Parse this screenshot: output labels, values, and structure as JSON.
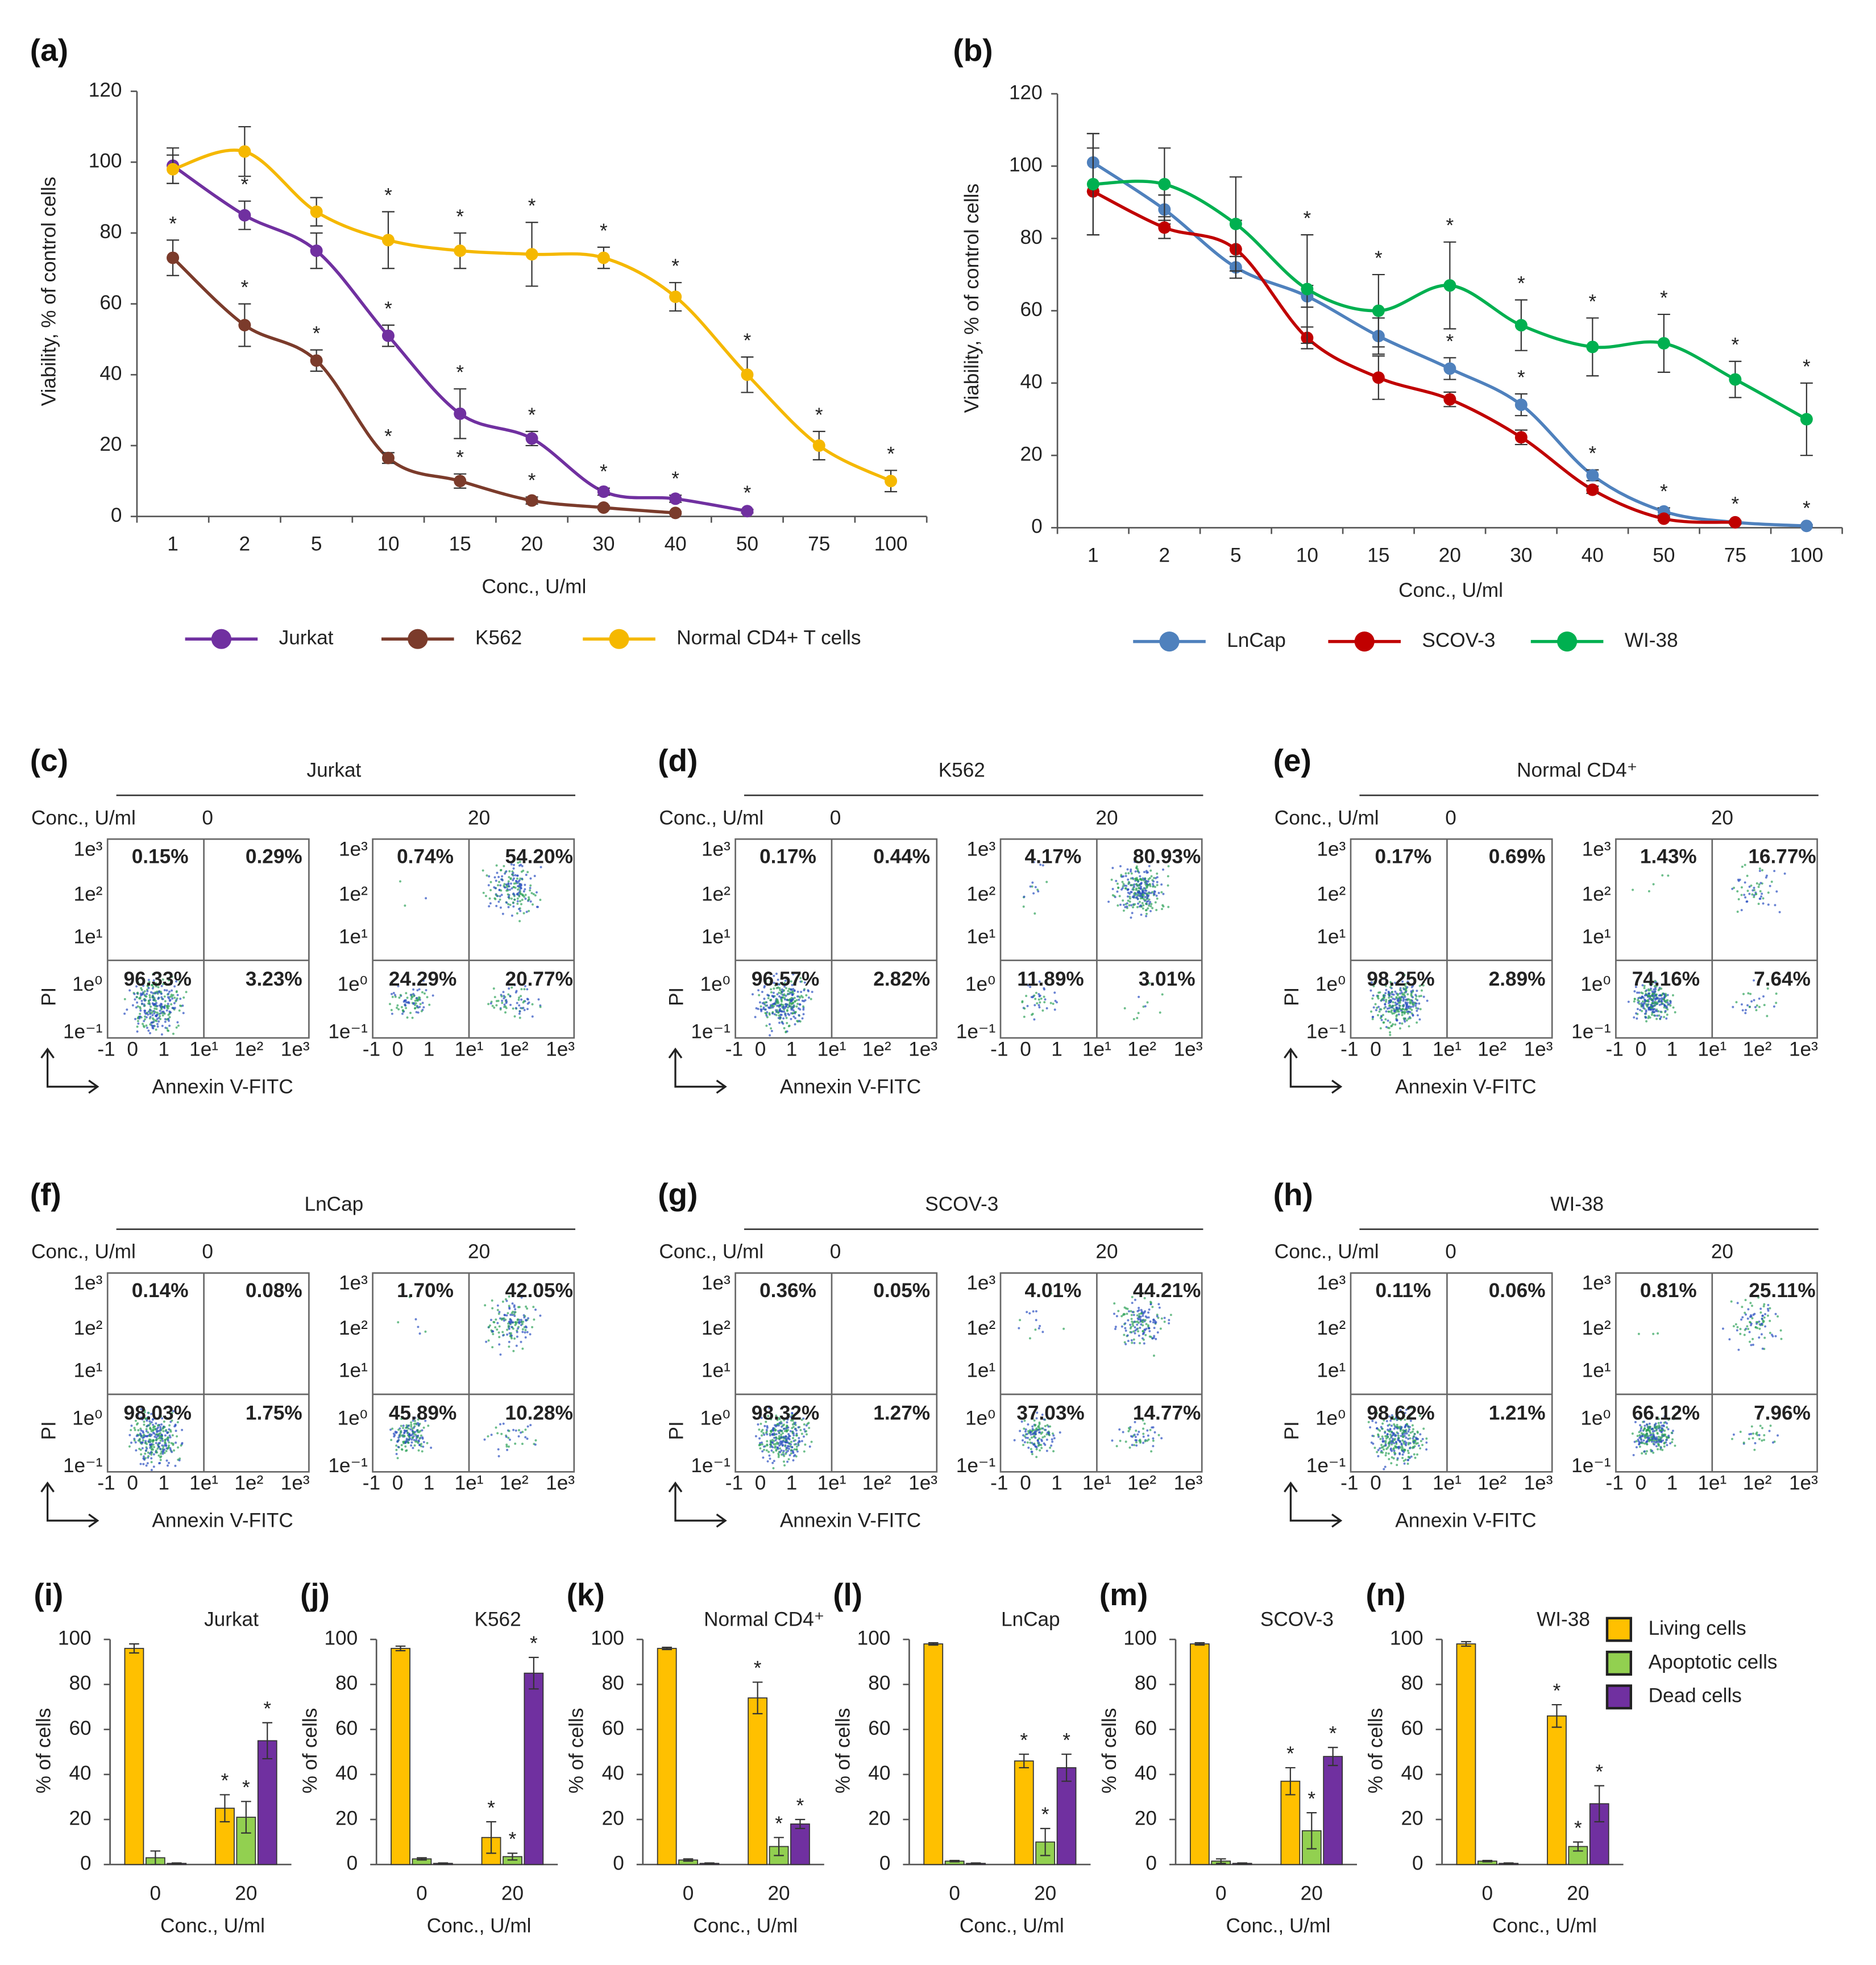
{
  "chart_data": [
    {
      "type": "line",
      "panel": "(a)",
      "y_label": "Viability,  % of control cells",
      "x_label": "Conc., U/ml",
      "categories": [
        "1",
        "2",
        "5",
        "10",
        "15",
        "20",
        "30",
        "40",
        "50",
        "75",
        "100"
      ],
      "ylim": [
        0,
        120
      ],
      "yticks": [
        0,
        20,
        40,
        60,
        80,
        100,
        120
      ],
      "series": [
        {
          "name": "Jurkat",
          "color": "#7030a0",
          "values": [
            99,
            85,
            75,
            51,
            29,
            22,
            7,
            5,
            1.5,
            null,
            null
          ],
          "errors": [
            5,
            4,
            5,
            3,
            7,
            2,
            1,
            1,
            0.5,
            null,
            null
          ],
          "asterisks": [
            null,
            "*",
            "*",
            "*",
            "*",
            "*",
            "*",
            "*",
            "*",
            null,
            null
          ]
        },
        {
          "name": "K562",
          "color": "#7b3b2b",
          "values": [
            73,
            54,
            44,
            16.5,
            10,
            4.5,
            2.5,
            1,
            null,
            null,
            null
          ],
          "errors": [
            5,
            6,
            3,
            1.5,
            2,
            1,
            0.5,
            0.3,
            null,
            null,
            null
          ],
          "asterisks": [
            "*",
            "*",
            "*",
            "*",
            "*",
            "*",
            null,
            null,
            null,
            null,
            null
          ]
        },
        {
          "name": "Normal  CD4+ T cells",
          "color": "#f5b800",
          "values": [
            98,
            103,
            86,
            78,
            75,
            74,
            73,
            62,
            40,
            20,
            10
          ],
          "errors": [
            4,
            7,
            4,
            8,
            5,
            9,
            3,
            4,
            5,
            4,
            3
          ],
          "asterisks": [
            null,
            null,
            null,
            "*",
            "*",
            "*",
            "*",
            "*",
            "*",
            "*",
            "*"
          ]
        }
      ]
    },
    {
      "type": "line",
      "panel": "(b)",
      "y_label": "Viability,  % of control cells",
      "x_label": "Conc., U/ml",
      "categories": [
        "1",
        "2",
        "5",
        "10",
        "15",
        "20",
        "30",
        "40",
        "50",
        "75",
        "100"
      ],
      "ylim": [
        0,
        120
      ],
      "yticks": [
        0,
        20,
        40,
        60,
        80,
        100,
        120
      ],
      "series": [
        {
          "name": "LnCap",
          "color": "#4f81bd",
          "values": [
            101,
            88,
            72,
            64,
            53,
            44,
            34,
            14.5,
            4.5,
            1.5,
            0.5
          ],
          "errors": [
            8,
            4,
            3,
            3,
            5,
            3,
            3,
            1.5,
            1,
            0.5,
            0.3
          ],
          "asterisks": [
            null,
            null,
            null,
            null,
            null,
            "*",
            "*",
            "*",
            "*",
            "*",
            "*"
          ]
        },
        {
          "name": "SCOV-3",
          "color": "#c00000",
          "values": [
            93,
            83,
            77,
            52.5,
            41.5,
            35.5,
            25,
            10.5,
            2.5,
            1.5,
            null
          ],
          "errors": [
            12,
            3,
            8,
            3,
            6,
            2,
            2,
            1,
            0.5,
            0.3,
            null
          ],
          "asterisks": [
            null,
            null,
            null,
            null,
            null,
            null,
            null,
            null,
            null,
            null,
            null
          ]
        },
        {
          "name": "WI-38",
          "color": "#00b050",
          "values": [
            95,
            95,
            84,
            66,
            60,
            67,
            56,
            50,
            51,
            41,
            30
          ],
          "errors": [
            14,
            10,
            13,
            15,
            10,
            12,
            7,
            8,
            8,
            5,
            10
          ],
          "asterisks": [
            null,
            null,
            null,
            "*",
            "*",
            "*",
            "*",
            "*",
            "*",
            "*",
            "*"
          ]
        }
      ]
    },
    {
      "type": "bar",
      "panel": "(i)",
      "title": "Jurkat",
      "y_label": "% of cells",
      "x_label": "Conc., U/ml",
      "categories": [
        "0",
        "20"
      ],
      "ylim": [
        0,
        100
      ],
      "yticks": [
        0,
        20,
        40,
        60,
        80,
        100
      ],
      "series": [
        {
          "color": "#ffc000",
          "values": [
            96,
            25
          ],
          "errors": [
            2,
            6
          ],
          "asterisks": [
            null,
            "*"
          ]
        },
        {
          "color": "#92d050",
          "values": [
            3,
            21
          ],
          "errors": [
            3,
            7
          ],
          "asterisks": [
            null,
            "*"
          ]
        },
        {
          "color": "#7030a0",
          "values": [
            0.5,
            55
          ],
          "errors": [
            0.2,
            8
          ],
          "asterisks": [
            null,
            "*"
          ]
        }
      ]
    },
    {
      "type": "bar",
      "panel": "(j)",
      "title": "K562",
      "y_label": "% of cells",
      "x_label": "Conc., U/ml",
      "categories": [
        "0",
        "20"
      ],
      "ylim": [
        0,
        100
      ],
      "yticks": [
        0,
        20,
        40,
        60,
        80,
        100
      ],
      "series": [
        {
          "color": "#ffc000",
          "values": [
            96,
            12
          ],
          "errors": [
            1,
            7
          ],
          "asterisks": [
            null,
            "*"
          ]
        },
        {
          "color": "#92d050",
          "values": [
            2.5,
            3.5
          ],
          "errors": [
            0.5,
            1.5
          ],
          "asterisks": [
            null,
            "*"
          ]
        },
        {
          "color": "#7030a0",
          "values": [
            0.5,
            85
          ],
          "errors": [
            0.2,
            7
          ],
          "asterisks": [
            null,
            "*"
          ]
        }
      ]
    },
    {
      "type": "bar",
      "panel": "(k)",
      "title": "Normal  CD4⁺",
      "y_label": "% of cells",
      "x_label": "Conc., U/ml",
      "categories": [
        "0",
        "20"
      ],
      "ylim": [
        0,
        100
      ],
      "yticks": [
        0,
        20,
        40,
        60,
        80,
        100
      ],
      "series": [
        {
          "color": "#ffc000",
          "values": [
            96,
            74
          ],
          "errors": [
            0.5,
            7
          ],
          "asterisks": [
            null,
            "*"
          ]
        },
        {
          "color": "#92d050",
          "values": [
            2,
            8
          ],
          "errors": [
            0.5,
            4
          ],
          "asterisks": [
            null,
            "*"
          ]
        },
        {
          "color": "#7030a0",
          "values": [
            0.5,
            18
          ],
          "errors": [
            0.2,
            2
          ],
          "asterisks": [
            null,
            "*"
          ]
        }
      ]
    },
    {
      "type": "bar",
      "panel": "(l)",
      "title": "LnCap",
      "y_label": "% of cells",
      "x_label": "Conc., U/ml",
      "categories": [
        "0",
        "20"
      ],
      "ylim": [
        0,
        100
      ],
      "yticks": [
        0,
        20,
        40,
        60,
        80,
        100
      ],
      "series": [
        {
          "color": "#ffc000",
          "values": [
            98,
            46
          ],
          "errors": [
            0.5,
            3
          ],
          "asterisks": [
            null,
            "*"
          ]
        },
        {
          "color": "#92d050",
          "values": [
            1.5,
            10
          ],
          "errors": [
            0.3,
            6
          ],
          "asterisks": [
            null,
            "*"
          ]
        },
        {
          "color": "#7030a0",
          "values": [
            0.5,
            43
          ],
          "errors": [
            0.2,
            6
          ],
          "asterisks": [
            null,
            "*"
          ]
        }
      ]
    },
    {
      "type": "bar",
      "panel": "(m)",
      "title": "SCOV-3",
      "y_label": "% of cells",
      "x_label": "Conc., U/ml",
      "categories": [
        "0",
        "20"
      ],
      "ylim": [
        0,
        100
      ],
      "yticks": [
        0,
        20,
        40,
        60,
        80,
        100
      ],
      "series": [
        {
          "color": "#ffc000",
          "values": [
            98,
            37
          ],
          "errors": [
            0.5,
            6
          ],
          "asterisks": [
            null,
            "*"
          ]
        },
        {
          "color": "#92d050",
          "values": [
            1.5,
            15
          ],
          "errors": [
            1,
            8
          ],
          "asterisks": [
            null,
            "*"
          ]
        },
        {
          "color": "#7030a0",
          "values": [
            0.5,
            48
          ],
          "errors": [
            0.2,
            4
          ],
          "asterisks": [
            null,
            "*"
          ]
        }
      ]
    },
    {
      "type": "bar",
      "panel": "(n)",
      "title": "WI-38",
      "y_label": "% of cells",
      "x_label": "Conc., U/ml",
      "categories": [
        "0",
        "20"
      ],
      "ylim": [
        0,
        100
      ],
      "yticks": [
        0,
        20,
        40,
        60,
        80,
        100
      ],
      "legend": "right",
      "series": [
        {
          "name": "Living  cells",
          "color": "#ffc000",
          "values": [
            98,
            66
          ],
          "errors": [
            1,
            5
          ],
          "asterisks": [
            null,
            "*"
          ]
        },
        {
          "name": "Apoptotic   cells",
          "color": "#92d050",
          "values": [
            1.5,
            8
          ],
          "errors": [
            0.3,
            2
          ],
          "asterisks": [
            null,
            "*"
          ]
        },
        {
          "name": "Dead  cells",
          "color": "#7030a0",
          "values": [
            0.5,
            27
          ],
          "errors": [
            0.2,
            8
          ],
          "asterisks": [
            null,
            "*"
          ]
        }
      ]
    }
  ],
  "flow_axes": {
    "y_tick_labels": [
      "1e³",
      "1e²",
      "1e¹",
      "1e⁰",
      "1e⁻¹"
    ],
    "x_tick_labels": [
      "-1",
      "0",
      "1",
      "1e¹",
      "1e²",
      "1e³"
    ],
    "y_label": "PI",
    "x_label": "Annexin V-FITC",
    "conc_label": "Conc., U/ml",
    "concentrations": [
      "0",
      "20"
    ]
  },
  "flow_panels": [
    {
      "panel": "(c)",
      "title": "Jurkat",
      "plots": [
        [
          "0.15%",
          "0.29%",
          "96.33%",
          "3.23%"
        ],
        [
          "0.74%",
          "54.20%",
          "24.29%",
          "20.77%"
        ]
      ]
    },
    {
      "panel": "(d)",
      "title": "K562",
      "plots": [
        [
          "0.17%",
          "0.44%",
          "96.57%",
          "2.82%"
        ],
        [
          "4.17%",
          "80.93%",
          "11.89%",
          "3.01%"
        ]
      ]
    },
    {
      "panel": "(e)",
      "title": "Normal  CD4⁺",
      "plots": [
        [
          "0.17%",
          "0.69%",
          "98.25%",
          "2.89%"
        ],
        [
          "1.43%",
          "16.77%",
          "74.16%",
          "7.64%"
        ]
      ]
    },
    {
      "panel": "(f)",
      "title": "LnCap",
      "plots": [
        [
          "0.14%",
          "0.08%",
          "98.03%",
          "1.75%"
        ],
        [
          "1.70%",
          "42.05%",
          "45.89%",
          "10.28%"
        ]
      ]
    },
    {
      "panel": "(g)",
      "title": "SCOV-3",
      "plots": [
        [
          "0.36%",
          "0.05%",
          "98.32%",
          "1.27%"
        ],
        [
          "4.01%",
          "44.21%",
          "37.03%",
          "14.77%"
        ]
      ]
    },
    {
      "panel": "(h)",
      "title": "WI-38",
      "plots": [
        [
          "0.11%",
          "0.06%",
          "98.62%",
          "1.21%"
        ],
        [
          "0.81%",
          "25.11%",
          "66.12%",
          "7.96%"
        ]
      ]
    }
  ]
}
